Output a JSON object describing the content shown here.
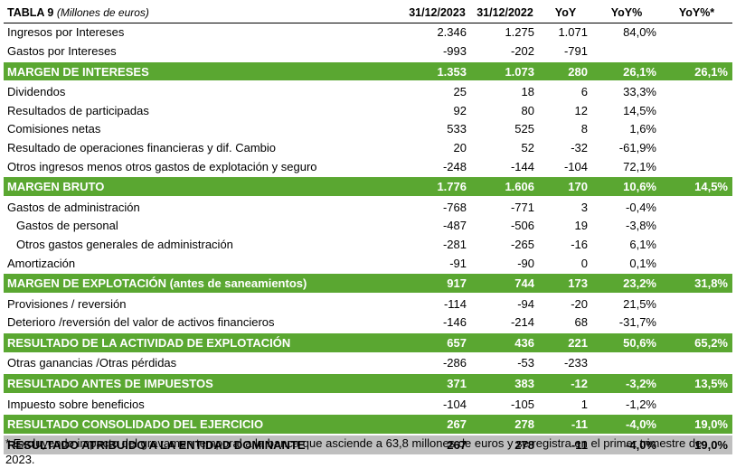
{
  "header": {
    "title": "TABLA 9",
    "subtitle": "(Millones de euros)",
    "columns": [
      "31/12/2023",
      "31/12/2022",
      "YoY",
      "YoY%",
      "YoY%*"
    ]
  },
  "rows": [
    {
      "label": "Ingresos por Intereses",
      "style": "normal",
      "values": [
        "2.346",
        "1.275",
        "1.071",
        "84,0%",
        ""
      ]
    },
    {
      "label": "Gastos por Intereses",
      "style": "normal",
      "values": [
        "-993",
        "-202",
        "-791",
        "",
        ""
      ]
    },
    {
      "label": "MARGEN DE INTERESES",
      "style": "highlight",
      "values": [
        "1.353",
        "1.073",
        "280",
        "26,1%",
        "26,1%"
      ]
    },
    {
      "label": "Dividendos",
      "style": "normal",
      "values": [
        "25",
        "18",
        "6",
        "33,3%",
        ""
      ]
    },
    {
      "label": "Resultados de participadas",
      "style": "normal",
      "values": [
        "92",
        "80",
        "12",
        "14,5%",
        ""
      ]
    },
    {
      "label": "Comisiones netas",
      "style": "normal",
      "values": [
        "533",
        "525",
        "8",
        "1,6%",
        ""
      ]
    },
    {
      "label": "Resultado de operaciones financieras y dif. Cambio",
      "style": "normal",
      "values": [
        "20",
        "52",
        "-32",
        "-61,9%",
        ""
      ]
    },
    {
      "label": "Otros ingresos menos otros gastos de explotación y seguro",
      "style": "normal",
      "values": [
        "-248",
        "-144",
        "-104",
        "72,1%",
        ""
      ]
    },
    {
      "label": "MARGEN BRUTO",
      "style": "highlight",
      "values": [
        "1.776",
        "1.606",
        "170",
        "10,6%",
        "14,5%"
      ]
    },
    {
      "label": "Gastos de administración",
      "style": "normal",
      "values": [
        "-768",
        "-771",
        "3",
        "-0,4%",
        ""
      ]
    },
    {
      "label": "Gastos de personal",
      "style": "indent",
      "values": [
        "-487",
        "-506",
        "19",
        "-3,8%",
        ""
      ]
    },
    {
      "label": "Otros gastos generales de administración",
      "style": "indent",
      "values": [
        "-281",
        "-265",
        "-16",
        "6,1%",
        ""
      ]
    },
    {
      "label": "Amortización",
      "style": "normal",
      "values": [
        "-91",
        "-90",
        "0",
        "0,1%",
        ""
      ]
    },
    {
      "label": "MARGEN DE EXPLOTACIÓN (antes de saneamientos)",
      "style": "highlight",
      "values": [
        "917",
        "744",
        "173",
        "23,2%",
        "31,8%"
      ]
    },
    {
      "label": "Provisiones / reversión",
      "style": "normal",
      "values": [
        "-114",
        "-94",
        "-20",
        "21,5%",
        ""
      ]
    },
    {
      "label": "Deterioro /reversión del valor de activos financieros",
      "style": "normal",
      "values": [
        "-146",
        "-214",
        "68",
        "-31,7%",
        ""
      ]
    },
    {
      "label": "RESULTADO DE LA ACTIVIDAD DE EXPLOTACIÓN",
      "style": "highlight",
      "values": [
        "657",
        "436",
        "221",
        "50,6%",
        "65,2%"
      ]
    },
    {
      "label": "Otras ganancias /Otras pérdidas",
      "style": "normal",
      "values": [
        "-286",
        "-53",
        "-233",
        "",
        ""
      ]
    },
    {
      "label": "RESULTADO ANTES DE IMPUESTOS",
      "style": "highlight",
      "values": [
        "371",
        "383",
        "-12",
        "-3,2%",
        "13,5%"
      ]
    },
    {
      "label": "Impuesto sobre beneficios",
      "style": "normal",
      "values": [
        "-104",
        "-105",
        "1",
        "-1,2%",
        ""
      ]
    },
    {
      "label": "RESULTADO CONSOLIDADO DEL EJERCICIO",
      "style": "highlight",
      "values": [
        "267",
        "278",
        "-11",
        "-4,0%",
        "19,0%"
      ]
    },
    {
      "label": "RESULTADO ATRIBUIDO A LA ENTIDAD DOMINANTE",
      "style": "final",
      "values": [
        "267",
        "278",
        "-11",
        "-4,0%",
        "19,0%"
      ]
    }
  ],
  "footnote": "* Excluyendo impacto del gravamen temporal a la banca que asciende a 63,8 millones de euros y se registra en el primer trimestre de 2023.",
  "colors": {
    "highlight_bg": "#5aa731",
    "highlight_text": "#ffffff",
    "final_bg": "#bfbfbf"
  }
}
